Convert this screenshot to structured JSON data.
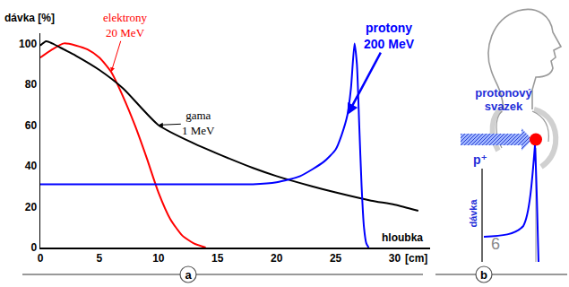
{
  "chart_data": {
    "type": "line",
    "panel_label": "a",
    "y_label": "dávka [%]",
    "x_label": "hloubka",
    "x_unit_label": "[cm]",
    "xlim": [
      0,
      33
    ],
    "xticks": [
      0,
      5,
      10,
      15,
      20,
      25,
      30
    ],
    "ylim": [
      0,
      105
    ],
    "yticks": [
      0,
      20,
      40,
      60,
      80,
      100
    ],
    "grid": false,
    "series": [
      {
        "name": "elektrony 20 MeV",
        "color": "#ff0000",
        "x": [
          0,
          1,
          2,
          3,
          4,
          5,
          6,
          7,
          8,
          9,
          10,
          11,
          12,
          13,
          14
        ],
        "values": [
          93,
          97,
          100,
          99,
          97,
          93,
          86,
          74,
          60,
          44,
          27,
          14,
          6,
          2,
          0
        ]
      },
      {
        "name": "gama 1 MeV",
        "color": "#000000",
        "x": [
          0,
          0.5,
          1,
          2,
          3,
          5,
          7,
          10,
          13,
          15,
          18,
          20,
          23,
          25,
          28,
          30,
          32
        ],
        "values": [
          99,
          101,
          100,
          97,
          94,
          87,
          78,
          60,
          51,
          46,
          39,
          35,
          30,
          27,
          23,
          21,
          18
        ]
      },
      {
        "name": "protony 200 MeV",
        "color": "#0000ff",
        "x": [
          0,
          5,
          10,
          15,
          18,
          20,
          22,
          24,
          25,
          25.5,
          26,
          26.3,
          26.6,
          26.8,
          27,
          27.2,
          27.4,
          27.6,
          27.8
        ],
        "values": [
          31,
          31,
          31,
          31,
          31,
          32,
          35,
          42,
          48,
          55,
          65,
          78,
          100,
          90,
          60,
          30,
          10,
          2,
          0
        ]
      }
    ]
  },
  "diagram": {
    "panel_label": "b",
    "beam_label": "protonový svazek",
    "particle": "p⁺",
    "dose_label": "dávka",
    "number": "6"
  }
}
